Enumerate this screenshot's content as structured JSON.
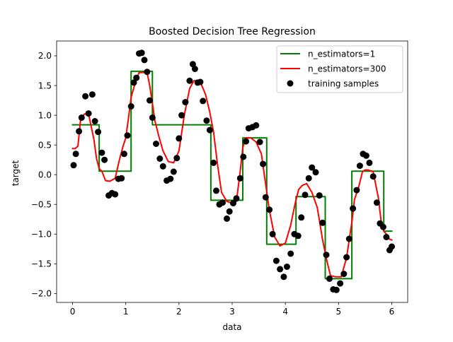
{
  "chart_data": {
    "type": "scatter",
    "title": "Boosted Decision Tree Regression",
    "xlabel": "data",
    "ylabel": "target",
    "xlim": [
      -0.3,
      6.3
    ],
    "ylim": [
      -2.15,
      2.25
    ],
    "grid": false,
    "legend_position": "top-right",
    "x_ticks": [
      0,
      1,
      2,
      3,
      4,
      5,
      6
    ],
    "x_tick_labels": [
      "0",
      "1",
      "2",
      "3",
      "4",
      "5",
      "6"
    ],
    "y_ticks": [
      2.0,
      1.5,
      1.0,
      0.5,
      0.0,
      -0.5,
      -1.0,
      -1.5,
      -2.0
    ],
    "y_tick_labels": [
      "2.0",
      "1.5",
      "1.0",
      "0.5",
      "0.0",
      "−0.5",
      "−1.0",
      "−1.5",
      "−2.0"
    ],
    "series": [
      {
        "name": "n_estimators=1",
        "kind": "step-line",
        "color": "#008000",
        "x": [
          0.0,
          0.5,
          0.5,
          1.1,
          1.1,
          1.5,
          1.5,
          2.6,
          2.6,
          3.2,
          3.2,
          3.65,
          3.65,
          4.2,
          4.2,
          4.75,
          4.75,
          5.25,
          5.25,
          5.85,
          5.85,
          6.0
        ],
        "y": [
          0.84,
          0.84,
          0.06,
          0.06,
          1.74,
          1.74,
          0.84,
          0.84,
          -0.43,
          -0.43,
          0.62,
          0.62,
          -1.17,
          -1.17,
          -0.37,
          -0.37,
          -1.75,
          -1.75,
          0.06,
          0.06,
          -0.95,
          -0.95
        ]
      },
      {
        "name": "n_estimators=300",
        "kind": "line",
        "color": "#ff0000",
        "x": [
          0.0,
          0.05,
          0.1,
          0.15,
          0.22,
          0.3,
          0.4,
          0.45,
          0.5,
          0.55,
          0.62,
          0.7,
          0.8,
          0.88,
          0.95,
          1.0,
          1.05,
          1.1,
          1.18,
          1.25,
          1.32,
          1.4,
          1.45,
          1.5,
          1.55,
          1.62,
          1.7,
          1.8,
          1.9,
          2.0,
          2.1,
          2.2,
          2.28,
          2.35,
          2.42,
          2.5,
          2.58,
          2.65,
          2.72,
          2.8,
          2.9,
          3.0,
          3.08,
          3.15,
          3.2,
          3.25,
          3.35,
          3.45,
          3.55,
          3.62,
          3.7,
          3.8,
          3.9,
          4.0,
          4.1,
          4.18,
          4.25,
          4.32,
          4.4,
          4.5,
          4.6,
          4.7,
          4.78,
          4.85,
          4.95,
          5.05,
          5.15,
          5.25,
          5.3,
          5.38,
          5.45,
          5.5,
          5.55,
          5.65,
          5.75,
          5.8,
          5.85,
          5.9,
          5.95,
          6.0
        ],
        "y": [
          0.44,
          0.44,
          0.48,
          0.92,
          1.02,
          1.02,
          0.6,
          0.27,
          0.1,
          0.06,
          -0.1,
          -0.11,
          -0.06,
          0.25,
          0.48,
          0.62,
          0.95,
          1.3,
          1.55,
          1.72,
          1.72,
          1.72,
          1.5,
          1.2,
          0.9,
          0.65,
          0.4,
          0.22,
          0.2,
          0.4,
          1.0,
          1.45,
          1.58,
          1.58,
          1.52,
          1.35,
          1.05,
          0.72,
          0.2,
          -0.3,
          -0.45,
          -0.48,
          -0.45,
          0.05,
          0.45,
          0.62,
          0.62,
          0.55,
          0.35,
          -0.1,
          -0.6,
          -1.05,
          -1.2,
          -1.15,
          -0.85,
          -0.5,
          -0.25,
          -0.18,
          -0.15,
          -0.3,
          -0.55,
          -1.1,
          -1.45,
          -1.7,
          -1.72,
          -1.72,
          -1.4,
          -0.8,
          -0.42,
          -0.2,
          0.05,
          0.08,
          0.08,
          0.05,
          -0.4,
          -0.78,
          -0.95,
          -1.0,
          -1.08,
          -1.1
        ]
      },
      {
        "name": "training samples",
        "kind": "scatter",
        "color": "#000000",
        "x": [
          0.02,
          0.06,
          0.12,
          0.17,
          0.24,
          0.3,
          0.37,
          0.42,
          0.48,
          0.55,
          0.6,
          0.68,
          0.74,
          0.8,
          0.86,
          0.92,
          0.97,
          1.03,
          1.1,
          1.15,
          1.2,
          1.25,
          1.3,
          1.35,
          1.4,
          1.45,
          1.5,
          1.57,
          1.64,
          1.7,
          1.77,
          1.84,
          1.9,
          1.96,
          2.0,
          2.05,
          2.12,
          2.2,
          2.26,
          2.3,
          2.35,
          2.4,
          2.45,
          2.52,
          2.58,
          2.65,
          2.7,
          2.76,
          2.82,
          2.9,
          2.95,
          3.02,
          3.08,
          3.15,
          3.21,
          3.26,
          3.31,
          3.38,
          3.45,
          3.52,
          3.58,
          3.63,
          3.7,
          3.76,
          3.83,
          3.9,
          3.97,
          4.03,
          4.1,
          4.17,
          4.24,
          4.3,
          4.37,
          4.44,
          4.5,
          4.57,
          4.64,
          4.7,
          4.77,
          4.83,
          4.9,
          4.96,
          5.03,
          5.1,
          5.15,
          5.2,
          5.27,
          5.34,
          5.4,
          5.46,
          5.52,
          5.58,
          5.65,
          5.72,
          5.78,
          5.84,
          5.9,
          5.96,
          6.0
        ],
        "y": [
          0.16,
          0.35,
          0.73,
          0.96,
          1.32,
          1.03,
          1.35,
          0.9,
          0.72,
          0.37,
          0.25,
          -0.35,
          -0.31,
          -0.33,
          -0.07,
          -0.06,
          0.35,
          0.66,
          1.15,
          1.55,
          1.63,
          2.04,
          2.05,
          1.93,
          1.73,
          1.25,
          0.96,
          0.52,
          0.27,
          0.14,
          -0.1,
          -0.07,
          0.05,
          0.28,
          0.61,
          1.0,
          1.22,
          1.58,
          1.86,
          1.78,
          1.55,
          1.56,
          1.24,
          0.91,
          0.75,
          0.2,
          -0.27,
          -0.5,
          -0.47,
          -0.74,
          -0.62,
          -0.48,
          -0.4,
          -0.06,
          0.3,
          0.56,
          0.78,
          0.8,
          0.83,
          0.55,
          0.18,
          -0.38,
          -0.59,
          -1.0,
          -1.45,
          -1.59,
          -1.72,
          -1.55,
          -1.33,
          -1.0,
          -1.03,
          -0.72,
          -0.34,
          -0.06,
          0.12,
          0.04,
          -0.35,
          -0.81,
          -1.35,
          -1.75,
          -1.93,
          -1.94,
          -1.83,
          -1.67,
          -1.39,
          -1.08,
          -0.57,
          -0.26,
          0.15,
          0.35,
          0.32,
          0.2,
          -0.03,
          -0.47,
          -0.82,
          -0.88,
          -1.05,
          -1.27,
          -1.21
        ]
      }
    ]
  }
}
